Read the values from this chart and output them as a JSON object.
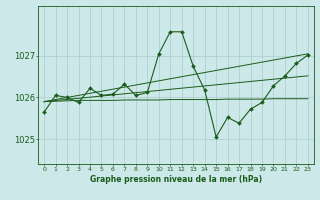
{
  "bg_color": "#cce8e8",
  "grid_color": "#aacccc",
  "line_color": "#1a5c1a",
  "title": "Graphe pression niveau de la mer (hPa)",
  "ylim": [
    1024.4,
    1028.2
  ],
  "xlim": [
    -0.5,
    23.5
  ],
  "yticks": [
    1025,
    1026,
    1027
  ],
  "xticks": [
    0,
    1,
    2,
    3,
    4,
    5,
    6,
    7,
    8,
    9,
    10,
    11,
    12,
    13,
    14,
    15,
    16,
    17,
    18,
    19,
    20,
    21,
    22,
    23
  ],
  "series1_x": [
    0,
    1,
    2,
    3,
    4,
    5,
    6,
    7,
    8,
    9,
    10,
    11,
    12,
    13,
    14,
    15,
    16,
    17,
    18,
    19,
    20,
    21,
    22,
    23
  ],
  "series1_y": [
    1025.65,
    1026.05,
    1026.0,
    1025.88,
    1026.22,
    1026.05,
    1026.08,
    1026.32,
    1026.05,
    1026.12,
    1027.05,
    1027.58,
    1027.58,
    1026.75,
    1026.18,
    1025.05,
    1025.52,
    1025.38,
    1025.72,
    1025.88,
    1026.28,
    1026.52,
    1026.82,
    1027.02
  ],
  "series2_x": [
    0,
    1,
    2,
    3,
    4,
    5,
    6,
    7,
    8,
    9,
    10,
    11,
    12,
    13,
    14,
    15,
    16,
    17,
    18,
    19,
    20,
    21,
    22,
    23
  ],
  "series2_y": [
    1025.9,
    1025.91,
    1025.92,
    1025.93,
    1025.93,
    1025.93,
    1025.93,
    1025.94,
    1025.94,
    1025.94,
    1025.94,
    1025.95,
    1025.95,
    1025.95,
    1025.95,
    1025.95,
    1025.96,
    1025.96,
    1025.96,
    1025.96,
    1025.97,
    1025.97,
    1025.97,
    1025.97
  ],
  "series3_x": [
    0,
    23
  ],
  "series3_y": [
    1025.9,
    1027.05
  ],
  "series4_x": [
    0,
    23
  ],
  "series4_y": [
    1025.9,
    1026.52
  ]
}
